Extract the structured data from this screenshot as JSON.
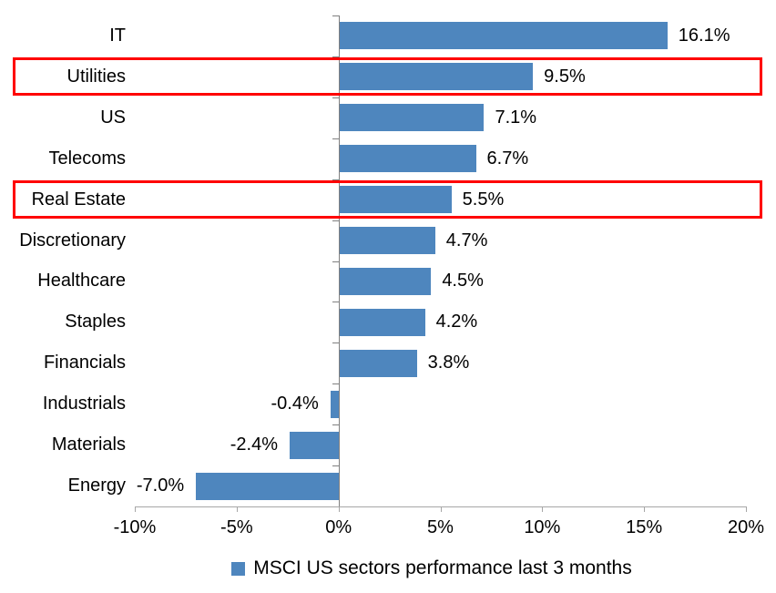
{
  "chart_data": {
    "type": "bar",
    "orientation": "horizontal",
    "title": "",
    "xlabel": "",
    "ylabel": "",
    "categories": [
      "IT",
      "Utilities",
      "US",
      "Telecoms",
      "Real Estate",
      "Discretionary",
      "Healthcare",
      "Staples",
      "Financials",
      "Industrials",
      "Materials",
      "Energy"
    ],
    "values": [
      16.1,
      9.5,
      7.1,
      6.7,
      5.5,
      4.7,
      4.5,
      4.2,
      3.8,
      -0.4,
      -2.4,
      -7.0
    ],
    "value_labels": [
      "16.1%",
      "9.5%",
      "7.1%",
      "6.7%",
      "5.5%",
      "4.7%",
      "4.5%",
      "4.2%",
      "3.8%",
      "-0.4%",
      "-2.4%",
      "-7.0%"
    ],
    "xlim": [
      -10,
      20
    ],
    "x_ticks": [
      -10,
      -5,
      0,
      5,
      10,
      15,
      20
    ],
    "x_tick_labels": [
      "-10%",
      "-5%",
      "0%",
      "5%",
      "10%",
      "15%",
      "20%"
    ],
    "grid": false,
    "bar_color": "#4e86be",
    "axis_color_category": "#808080",
    "axis_color_value": "#a6a6a6",
    "legend": {
      "position": "bottom",
      "label": "MSCI US sectors performance last 3 months",
      "marker_color": "#4e86be"
    },
    "highlights": {
      "color": "#ff0000",
      "categories": [
        "Utilities",
        "Real Estate"
      ]
    }
  }
}
